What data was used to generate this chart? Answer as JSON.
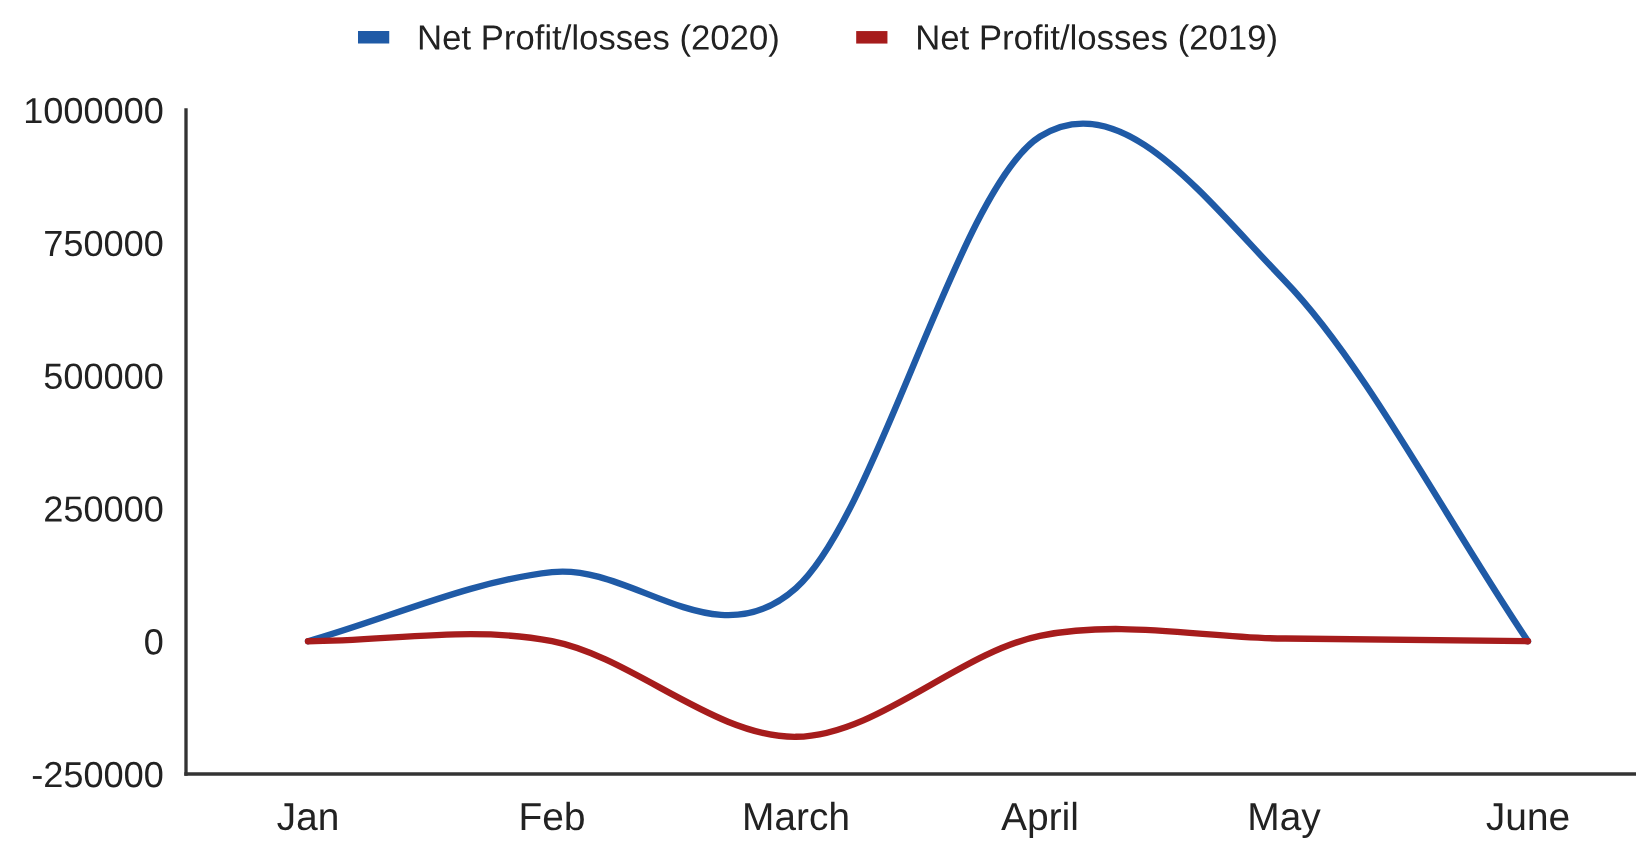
{
  "chart_data": {
    "type": "line",
    "categories": [
      "Jan",
      "Feb",
      "March",
      "April",
      "May",
      "June"
    ],
    "series": [
      {
        "name": "Net Profit/losses (2020)",
        "color": "#1f5aa6",
        "values": [
          0,
          130000,
          100000,
          950000,
          680000,
          0
        ]
      },
      {
        "name": "Net Profit/losses (2019)",
        "color": "#a61c1c",
        "values": [
          0,
          0,
          -180000,
          10000,
          5000,
          0
        ]
      }
    ],
    "ylim": [
      -250000,
      1000000
    ],
    "yticks": [
      -250000,
      0,
      250000,
      500000,
      750000,
      1000000
    ],
    "grid": false,
    "legend": "top",
    "marker": "none",
    "line_style": "solid"
  }
}
